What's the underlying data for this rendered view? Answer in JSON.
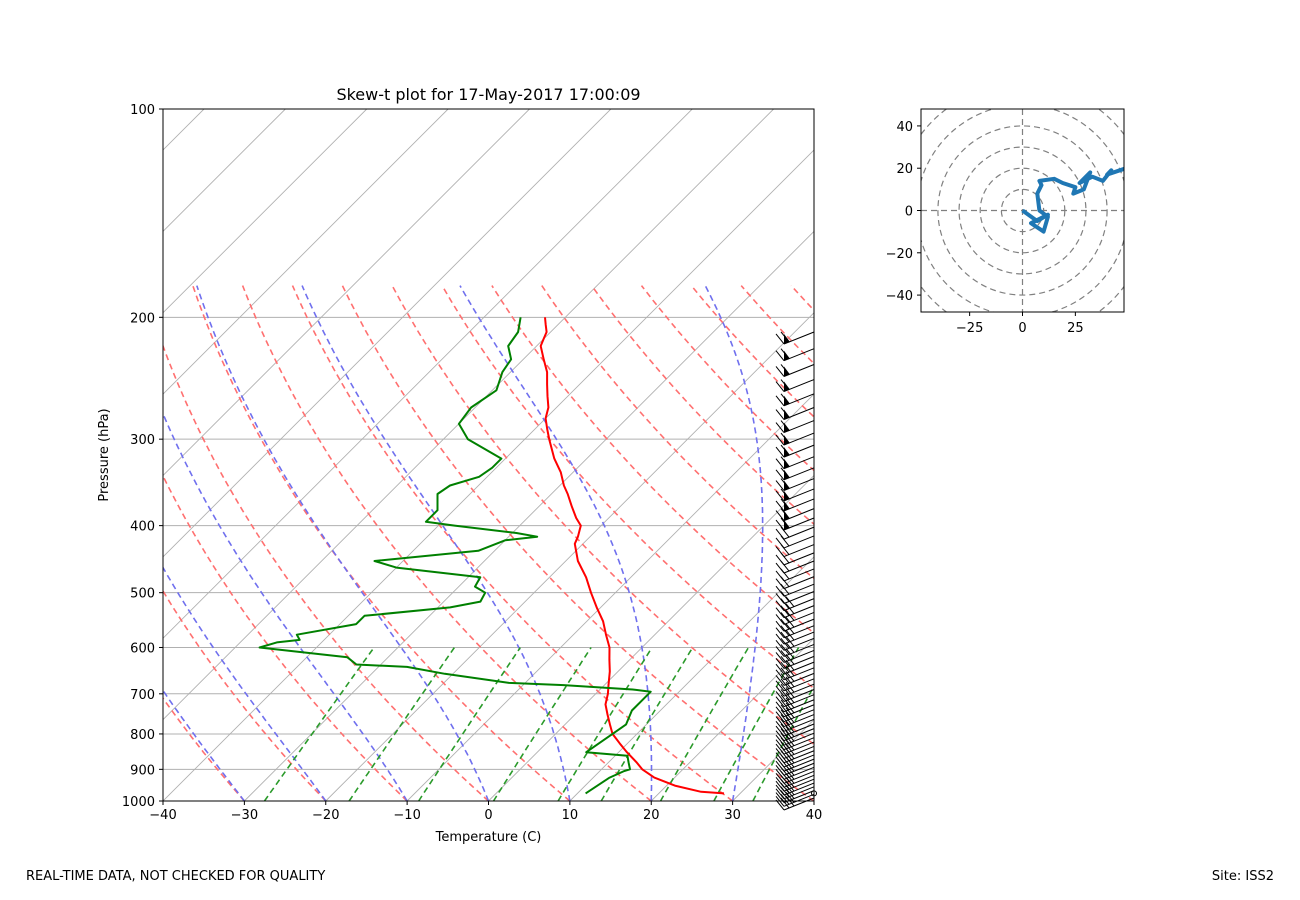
{
  "footer": {
    "note": "REAL-TIME DATA, NOT CHECKED FOR QUALITY",
    "site": "Site: ISS2"
  },
  "chart_data": [
    {
      "type": "line",
      "kind": "skew-t",
      "title": "Skew-t plot for 17-May-2017 17:00:09",
      "xlabel": "Temperature (C)",
      "ylabel": "Pressure (hPa)",
      "xlim": [
        -40,
        40
      ],
      "ylim": [
        1000,
        100
      ],
      "yscale": "log",
      "xticks": [
        -40,
        -30,
        -20,
        -10,
        0,
        10,
        20,
        30,
        40
      ],
      "xtick_labels": [
        "−40",
        "−30",
        "−20",
        "−10",
        "0",
        "10",
        "20",
        "30",
        "40"
      ],
      "yticks": [
        1000,
        900,
        800,
        700,
        600,
        500,
        400,
        300,
        200,
        100
      ],
      "ytick_labels": [
        "1000",
        "900",
        "800",
        "700",
        "600",
        "500",
        "400",
        "300",
        "200",
        "100"
      ],
      "colors": {
        "temperature": "#ff0000",
        "dewpoint": "#008000",
        "dry_adiabat": "#ff7070",
        "moist_adiabat": "#7070ee",
        "mixing_ratio": "#2a9a2a",
        "isotherm": "#b0b0b0",
        "grid": "#b0b0b0"
      },
      "series": [
        {
          "name": "Temperature",
          "pressure": [
            975,
            970,
            950,
            925,
            900,
            880,
            850,
            825,
            800,
            775,
            750,
            725,
            700,
            680,
            650,
            625,
            600,
            575,
            550,
            525,
            500,
            475,
            450,
            425,
            415,
            400,
            390,
            375,
            360,
            350,
            335,
            320,
            300,
            290,
            280,
            270,
            260,
            250,
            240,
            230,
            220,
            215,
            210,
            205,
            200
          ],
          "values": [
            28.0,
            25.0,
            21.0,
            17.5,
            15.0,
            13.5,
            11.0,
            9.0,
            7.0,
            5.5,
            4.0,
            2.5,
            1.5,
            0.5,
            -1.0,
            -2.5,
            -4.0,
            -6.0,
            -8.0,
            -10.5,
            -13.0,
            -15.5,
            -18.5,
            -21.0,
            -21.5,
            -22.5,
            -24.0,
            -26.0,
            -28.0,
            -29.5,
            -31.5,
            -34.0,
            -37.0,
            -38.5,
            -40.0,
            -41.0,
            -42.5,
            -44.0,
            -45.5,
            -47.5,
            -49.5,
            -50.0,
            -50.5,
            -51.5,
            -52.5
          ]
        },
        {
          "name": "Dewpoint",
          "pressure": [
            975,
            950,
            925,
            905,
            900,
            880,
            860,
            850,
            800,
            775,
            740,
            700,
            695,
            690,
            680,
            675,
            655,
            640,
            635,
            620,
            600,
            590,
            585,
            575,
            555,
            540,
            525,
            515,
            500,
            490,
            475,
            460,
            450,
            435,
            420,
            415,
            410,
            400,
            395,
            380,
            360,
            350,
            340,
            330,
            320,
            300,
            285,
            270,
            255,
            240,
            230,
            220,
            210,
            200
          ],
          "values": [
            11.0,
            11.5,
            12.0,
            13.0,
            13.5,
            12.5,
            11.5,
            6.0,
            7.0,
            7.5,
            6.5,
            6.5,
            6.5,
            4.0,
            -5.0,
            -12.0,
            -21.0,
            -26.5,
            -33.0,
            -35.0,
            -47.0,
            -45.5,
            -43.0,
            -44.0,
            -38.0,
            -38.0,
            -28.5,
            -25.5,
            -26.0,
            -28.0,
            -28.5,
            -40.0,
            -43.5,
            -32.0,
            -30.0,
            -26.5,
            -29.5,
            -38.0,
            -42.0,
            -42.0,
            -44.0,
            -43.5,
            -41.0,
            -40.5,
            -40.5,
            -47.0,
            -50.0,
            -50.5,
            -49.5,
            -51.0,
            -51.5,
            -53.5,
            -54.0,
            -55.5
          ]
        }
      ],
      "wind_barbs": "right margin, 1000-200 hPa"
    },
    {
      "type": "line",
      "kind": "hodograph",
      "xlim": [
        -48,
        48
      ],
      "ylim": [
        -48,
        48
      ],
      "xticks": [
        -25,
        0,
        25
      ],
      "xtick_labels": [
        "−25",
        "0",
        "25"
      ],
      "yticks": [
        40,
        20,
        0,
        -20,
        -40
      ],
      "ytick_labels": [
        "40",
        "20",
        "0",
        "−20",
        "−40"
      ],
      "rings": [
        10,
        20,
        30,
        40,
        50,
        60
      ],
      "color": "#1f77b4",
      "u": [
        0,
        7,
        12,
        4,
        10,
        12,
        8,
        7,
        9,
        8,
        15,
        19,
        25,
        24,
        29,
        32,
        27,
        33,
        38,
        42,
        40,
        46,
        49
      ],
      "v": [
        0,
        -5,
        -2,
        -6,
        -10,
        -3,
        0,
        8,
        12,
        14,
        15,
        13,
        11,
        8,
        10,
        18,
        13,
        16,
        14,
        19,
        17,
        19,
        20
      ]
    }
  ]
}
